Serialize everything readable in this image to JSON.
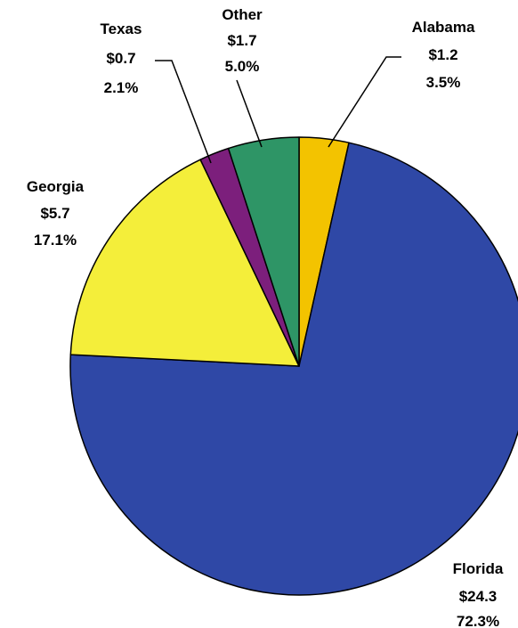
{
  "chart_data": {
    "type": "pie",
    "slices": [
      {
        "label": "Alabama",
        "value": 1.2,
        "value_text": "$1.2",
        "percent": 3.5,
        "percent_text": "3.5%",
        "color": "#f3c300"
      },
      {
        "label": "Florida",
        "value": 24.3,
        "value_text": "$24.3",
        "percent": 72.3,
        "percent_text": "72.3%",
        "color": "#2f48a6"
      },
      {
        "label": "Georgia",
        "value": 5.7,
        "value_text": "$5.7",
        "percent": 17.1,
        "percent_text": "17.1%",
        "color": "#f4ee3a"
      },
      {
        "label": "Texas",
        "value": 0.7,
        "value_text": "$0.7",
        "percent": 2.1,
        "percent_text": "2.1%",
        "color": "#7c1f7c"
      },
      {
        "label": "Other",
        "value": 1.7,
        "value_text": "$1.7",
        "percent": 5.0,
        "percent_text": "5.0%",
        "color": "#2e9566"
      }
    ],
    "start_angle_deg": 0,
    "direction": "clockwise",
    "legend": "none",
    "labels": "outside"
  }
}
